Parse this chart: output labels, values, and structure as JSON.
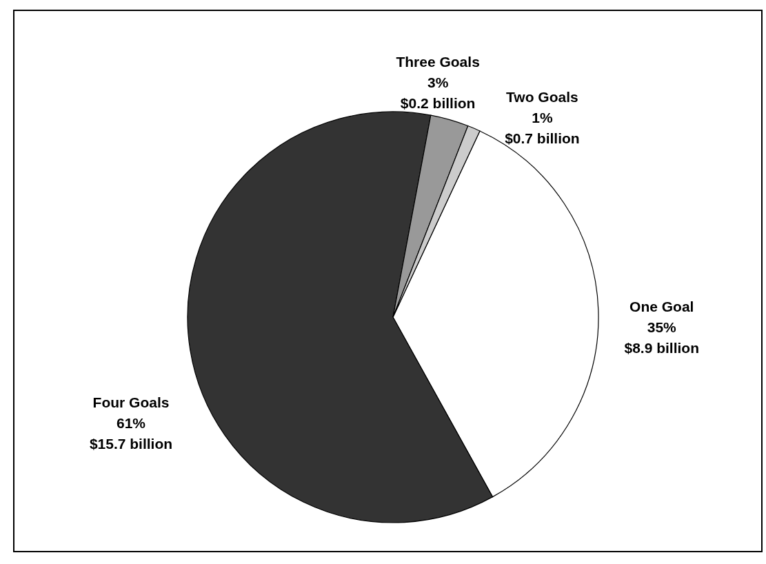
{
  "chart_data": {
    "type": "pie",
    "categories": [
      "One Goal",
      "Four Goals",
      "Three Goals",
      "Two Goals"
    ],
    "values": [
      35,
      61,
      3,
      1
    ],
    "colors": [
      "#ffffff",
      "#333333",
      "#999999",
      "#cccccc"
    ],
    "value_labels": [
      "35%\n$8.9 billion",
      "61%\n$15.7 billion",
      "3%\n$0.2 billion",
      "1%\n$0.7 billion"
    ]
  }
}
